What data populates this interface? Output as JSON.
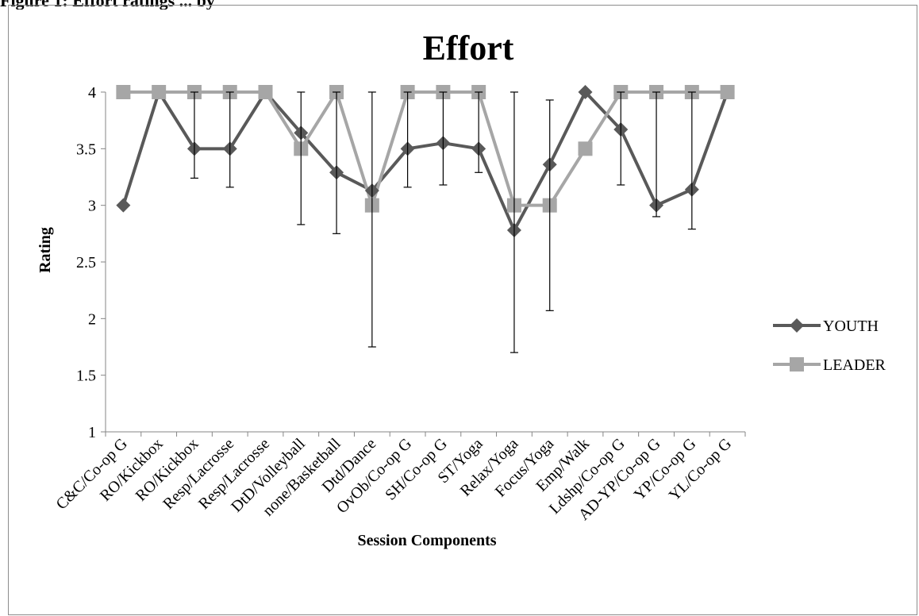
{
  "caption_fragment": "Figure 1: Effort ratings ... by",
  "chart_data": {
    "type": "line",
    "title": "Effort",
    "xlabel": "Session Components",
    "ylabel": "Rating",
    "ylim": [
      1,
      4
    ],
    "yticks": [
      "1",
      "1.5",
      "2",
      "2.5",
      "3",
      "3.5",
      "4"
    ],
    "grid": false,
    "legend_position": "right",
    "categories": [
      "C&C/Co-op G",
      "RO/Kickbox",
      "RO/Kickbox",
      "Resp/Lacrosse",
      "Resp/Lacrosse",
      "DtD/Volleyball",
      "none/Basketball",
      "Dtd/Dance",
      "OvOb/Co-op G",
      "SH/Co-op G",
      "ST/Yoga",
      "Relax/Yoga",
      "Focus/Yoga",
      "Emp/Walk",
      "Ldshp/Co-op G",
      "AD-YP/Co-op G",
      "YP/Co-op G",
      "YL/Co-op G"
    ],
    "series": [
      {
        "name": "YOUTH",
        "color": "#595959",
        "marker": "diamond",
        "values": [
          3.0,
          4.0,
          3.5,
          3.5,
          4.0,
          3.64,
          3.29,
          3.13,
          3.5,
          3.55,
          3.5,
          2.78,
          3.36,
          4.0,
          3.67,
          3.0,
          3.14,
          4.0
        ],
        "error_low": [
          null,
          null,
          3.24,
          3.16,
          null,
          2.83,
          2.75,
          1.75,
          3.16,
          3.18,
          3.29,
          1.7,
          2.07,
          null,
          3.18,
          2.9,
          2.79,
          null
        ],
        "error_high": [
          null,
          null,
          4.0,
          4.0,
          null,
          4.0,
          4.0,
          4.0,
          4.0,
          4.0,
          4.0,
          4.0,
          3.93,
          null,
          4.0,
          4.0,
          4.0,
          null
        ]
      },
      {
        "name": "LEADER",
        "color": "#a6a6a6",
        "marker": "square",
        "values": [
          4.0,
          4.0,
          4.0,
          4.0,
          4.0,
          3.5,
          4.0,
          3.0,
          4.0,
          4.0,
          4.0,
          3.0,
          3.0,
          3.5,
          4.0,
          4.0,
          4.0,
          4.0
        ]
      }
    ]
  }
}
